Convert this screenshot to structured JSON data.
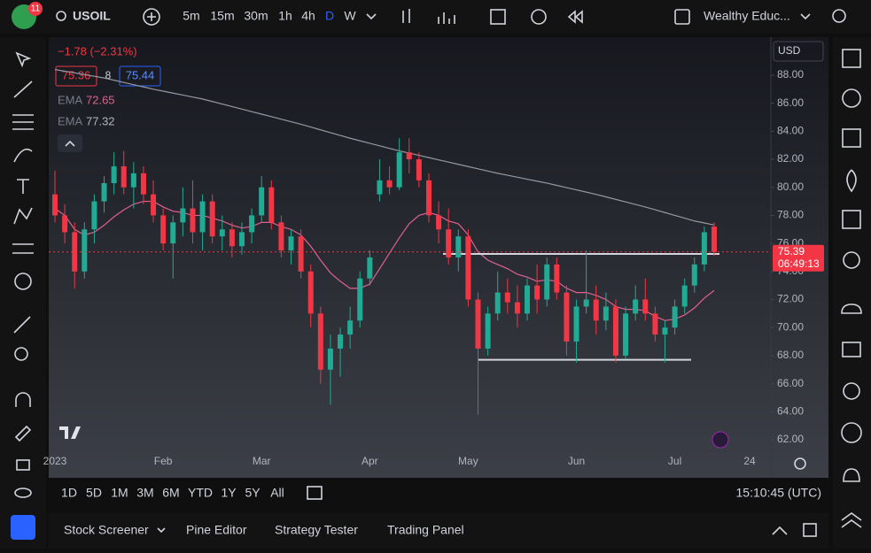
{
  "header": {
    "badge": "11",
    "symbol": "USOIL",
    "intervals": [
      "5m",
      "15m",
      "30m",
      "1h",
      "4h",
      "D",
      "W"
    ],
    "active_interval": "D",
    "layout_name": "Wealthy Educ..."
  },
  "legend": {
    "change": "−1.78 (−2.31%)",
    "bid": "75.36",
    "spread": "8",
    "ask": "75.44",
    "indicators": [
      {
        "name": "EMA",
        "value": "72.65"
      },
      {
        "name": "EMA",
        "value": "77.32"
      }
    ]
  },
  "chart_data": {
    "type": "candlestick",
    "currency": "USD",
    "categories": [
      "2023",
      null,
      null,
      null,
      null,
      null,
      null,
      null,
      null,
      null,
      null,
      "Feb",
      null,
      null,
      null,
      null,
      null,
      null,
      null,
      null,
      null,
      "Mar",
      null,
      null,
      null,
      null,
      null,
      null,
      null,
      null,
      null,
      null,
      "Apr",
      null,
      null,
      null,
      null,
      null,
      null,
      null,
      null,
      null,
      "May",
      null,
      null,
      null,
      null,
      null,
      null,
      null,
      null,
      null,
      null,
      "Jun",
      null,
      null,
      null,
      null,
      null,
      null,
      null,
      null,
      null,
      "Jul",
      null,
      null,
      null,
      null
    ],
    "ohlc": [
      [
        79.5,
        81.2,
        77.5,
        78.0
      ],
      [
        78.0,
        78.8,
        76.0,
        76.8
      ],
      [
        76.8,
        77.5,
        72.8,
        74.0
      ],
      [
        74.0,
        77.5,
        73.5,
        77.0
      ],
      [
        77.0,
        79.5,
        76.0,
        79.0
      ],
      [
        79.0,
        80.8,
        78.2,
        80.3
      ],
      [
        80.3,
        82.5,
        79.5,
        81.5
      ],
      [
        81.5,
        82.6,
        79.5,
        80.0
      ],
      [
        80.0,
        81.8,
        78.5,
        81.0
      ],
      [
        81.0,
        81.5,
        78.8,
        79.5
      ],
      [
        79.5,
        80.5,
        77.5,
        78.0
      ],
      [
        78.0,
        78.5,
        75.5,
        76.0
      ],
      [
        76.0,
        78.0,
        73.5,
        77.5
      ],
      [
        77.5,
        80.0,
        76.5,
        78.5
      ],
      [
        78.5,
        80.5,
        76.0,
        76.8
      ],
      [
        76.8,
        79.5,
        75.5,
        79.0
      ],
      [
        79.0,
        79.5,
        76.0,
        76.5
      ],
      [
        76.5,
        78.0,
        75.5,
        77.0
      ],
      [
        77.0,
        77.5,
        75.0,
        75.8
      ],
      [
        75.8,
        77.5,
        75.2,
        76.8
      ],
      [
        76.8,
        78.5,
        76.0,
        78.0
      ],
      [
        78.0,
        80.8,
        77.5,
        80.0
      ],
      [
        80.0,
        80.5,
        77.0,
        77.5
      ],
      [
        77.5,
        78.0,
        75.0,
        75.5
      ],
      [
        75.5,
        77.0,
        74.5,
        76.5
      ],
      [
        76.5,
        77.0,
        73.5,
        74.0
      ],
      [
        74.0,
        74.5,
        70.0,
        71.0
      ],
      [
        71.0,
        71.5,
        66.0,
        67.0
      ],
      [
        67.0,
        69.5,
        64.5,
        68.5
      ],
      [
        68.5,
        70.0,
        66.5,
        69.5
      ],
      [
        69.5,
        71.5,
        68.5,
        70.5
      ],
      [
        70.5,
        74.0,
        70.0,
        73.5
      ],
      [
        73.5,
        75.5,
        73.0,
        75.0
      ],
      [
        79.5,
        82.0,
        79.0,
        80.5
      ],
      [
        80.5,
        81.5,
        79.5,
        80.0
      ],
      [
        80.0,
        83.5,
        79.8,
        82.5
      ],
      [
        82.5,
        83.5,
        81.0,
        82.0
      ],
      [
        82.0,
        82.5,
        80.0,
        80.5
      ],
      [
        80.5,
        81.0,
        77.5,
        78.0
      ],
      [
        78.0,
        79.0,
        76.0,
        77.0
      ],
      [
        77.0,
        78.5,
        74.5,
        75.0
      ],
      [
        75.0,
        77.0,
        74.0,
        76.5
      ],
      [
        76.5,
        77.0,
        71.5,
        72.0
      ],
      [
        72.0,
        72.5,
        63.8,
        68.5
      ],
      [
        68.5,
        71.5,
        68.0,
        71.0
      ],
      [
        71.0,
        74.0,
        70.5,
        72.5
      ],
      [
        72.5,
        73.5,
        71.0,
        71.8
      ],
      [
        71.8,
        73.0,
        70.0,
        71.0
      ],
      [
        71.0,
        73.5,
        70.5,
        73.0
      ],
      [
        73.0,
        74.5,
        71.0,
        72.0
      ],
      [
        72.0,
        75.0,
        71.5,
        74.5
      ],
      [
        74.5,
        75.0,
        72.0,
        72.5
      ],
      [
        72.5,
        73.0,
        68.0,
        69.0
      ],
      [
        69.0,
        72.0,
        67.5,
        71.5
      ],
      [
        71.5,
        75.5,
        71.0,
        72.0
      ],
      [
        72.0,
        73.0,
        69.5,
        70.5
      ],
      [
        70.5,
        72.5,
        69.8,
        71.5
      ],
      [
        71.5,
        72.0,
        67.5,
        68.0
      ],
      [
        68.0,
        71.5,
        67.8,
        71.0
      ],
      [
        71.0,
        73.0,
        70.5,
        72.0
      ],
      [
        72.0,
        73.5,
        70.5,
        71.0
      ],
      [
        71.0,
        71.5,
        69.0,
        69.5
      ],
      [
        69.5,
        70.5,
        67.5,
        70.0
      ],
      [
        70.0,
        72.0,
        69.5,
        71.5
      ],
      [
        71.5,
        73.5,
        71.0,
        73.0
      ],
      [
        73.0,
        75.0,
        72.5,
        74.5
      ],
      [
        74.5,
        77.2,
        74.0,
        76.8
      ],
      [
        77.2,
        77.5,
        75.1,
        75.39
      ]
    ],
    "up_color": "#22ab94",
    "down_color": "#f23645",
    "lines": [
      {
        "color": "#e0608f",
        "values": [
          78.5,
          78.0,
          77.0,
          76.6,
          76.8,
          77.3,
          77.9,
          78.4,
          78.8,
          79.0,
          79.0,
          78.6,
          78.3,
          78.2,
          78.0,
          78.0,
          77.8,
          77.6,
          77.3,
          77.1,
          77.2,
          77.5,
          77.5,
          77.2,
          77.0,
          76.6,
          75.8,
          74.8,
          73.9,
          73.3,
          72.8,
          72.8,
          73.1,
          74.2,
          75.3,
          76.4,
          77.4,
          78.0,
          78.2,
          78.0,
          77.6,
          77.4,
          76.6,
          75.4,
          74.8,
          74.5,
          74.2,
          73.8,
          73.6,
          73.3,
          73.4,
          73.3,
          72.8,
          72.5,
          72.5,
          72.3,
          72.0,
          71.5,
          71.3,
          71.3,
          71.2,
          70.8,
          70.5,
          70.6,
          70.9,
          71.4,
          72.1,
          72.65
        ]
      },
      {
        "color": "#9598a1",
        "values": [
          88.4,
          88.28,
          88.16,
          88.04,
          87.92,
          87.8,
          87.64,
          87.48,
          87.32,
          87.16,
          87.0,
          86.86,
          86.72,
          86.58,
          86.44,
          86.3,
          86.12,
          85.94,
          85.76,
          85.58,
          85.4,
          85.22,
          85.04,
          84.86,
          84.68,
          84.5,
          84.3,
          84.1,
          83.9,
          83.7,
          83.5,
          83.32,
          83.14,
          82.96,
          82.78,
          82.6,
          82.44,
          82.28,
          82.12,
          81.96,
          81.8,
          81.64,
          81.48,
          81.32,
          81.16,
          81.0,
          80.86,
          80.72,
          80.58,
          80.44,
          80.3,
          80.14,
          79.98,
          79.82,
          79.66,
          79.5,
          79.32,
          79.14,
          78.96,
          78.78,
          78.6,
          78.4,
          78.2,
          78.0,
          77.8,
          77.6,
          77.46,
          77.32
        ]
      }
    ],
    "levels": [
      75.25,
      67.7
    ],
    "price_label": {
      "value": 75.39,
      "label": "75.39"
    },
    "countdown": "06:49:13",
    "ylim": [
      61.18,
      90.52
    ],
    "yticks": [
      {
        "value": 88,
        "label": "88.00"
      },
      {
        "value": 86,
        "label": "86.00"
      },
      {
        "value": 84,
        "label": "84.00"
      },
      {
        "value": 82,
        "label": "82.00"
      },
      {
        "value": 80,
        "label": "80.00"
      },
      {
        "value": 78,
        "label": "78.00"
      },
      {
        "value": 76,
        "label": "76.00"
      },
      {
        "value": 74,
        "label": "74.00"
      },
      {
        "value": 72,
        "label": "72.00"
      },
      {
        "value": 70,
        "label": "70.00"
      },
      {
        "value": 68,
        "label": "68.00"
      },
      {
        "value": 66,
        "label": "66.00"
      },
      {
        "value": 64,
        "label": "64.00"
      },
      {
        "value": 62,
        "label": "62.00"
      }
    ],
    "x_extra_label": "24"
  },
  "footer": {
    "ranges": [
      "1D",
      "5D",
      "1M",
      "3M",
      "6M",
      "YTD",
      "1Y",
      "5Y",
      "All"
    ],
    "time": "15:10:45 (UTC)",
    "tabs": [
      "Stock Screener",
      "Pine Editor",
      "Strategy Tester",
      "Trading Panel"
    ]
  }
}
